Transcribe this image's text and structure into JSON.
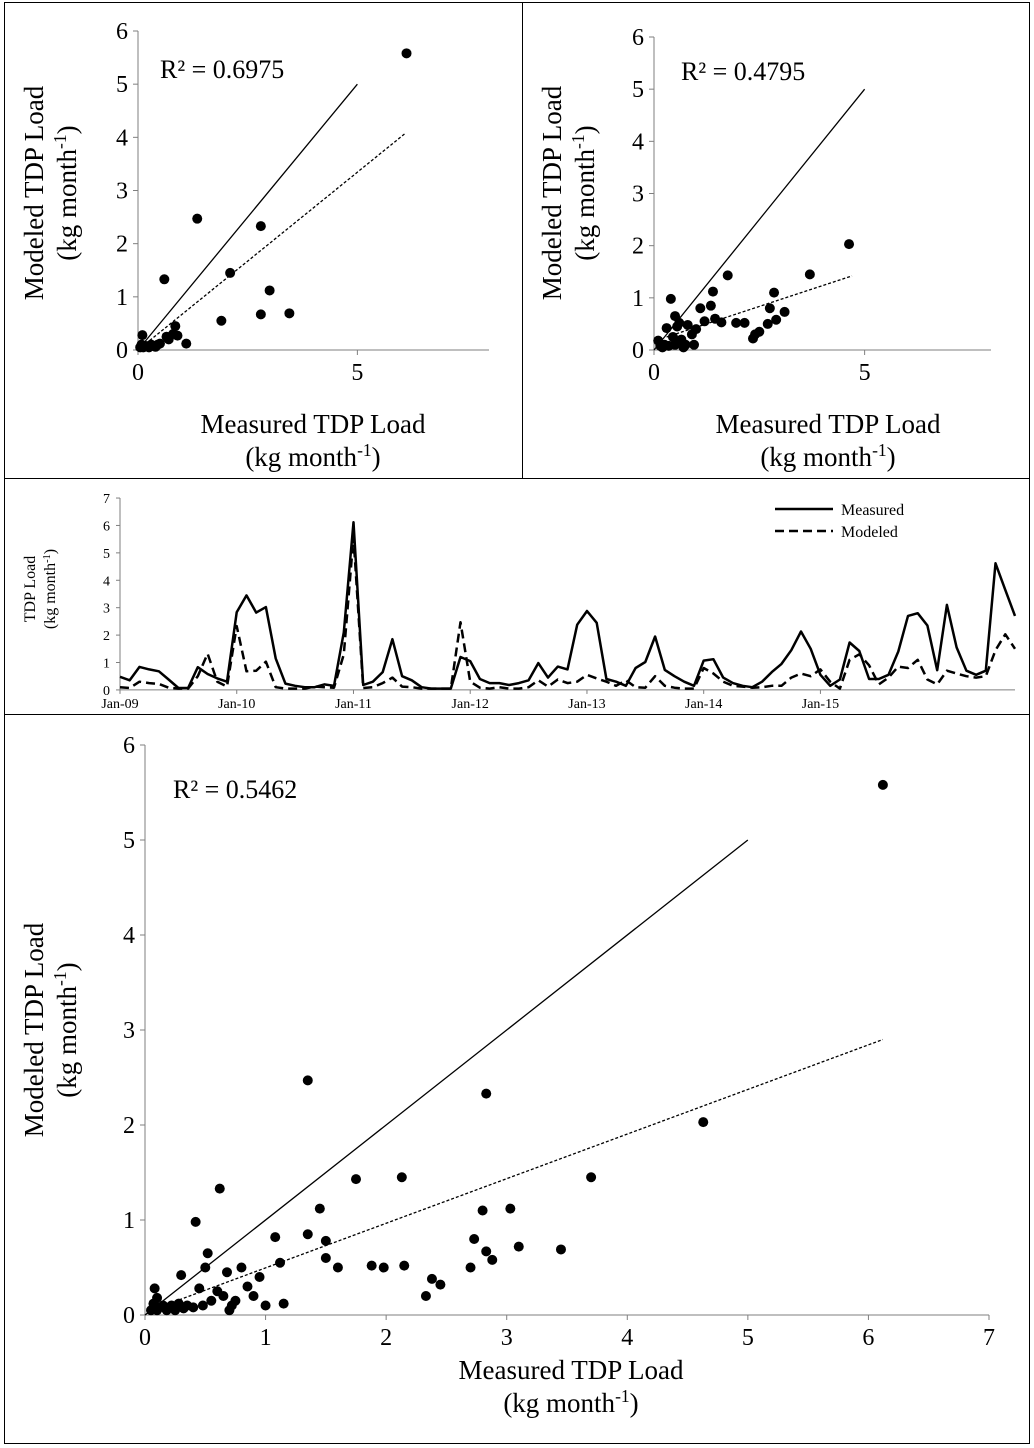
{
  "chart_data": [
    {
      "id": "scatter-a",
      "type": "scatter",
      "xlabel": "Measured  TDP Load",
      "xlabel_unit": "(kg month-1)",
      "ylabel": "Modeled  TDP Load",
      "ylabel_unit": "(kg month-1)",
      "annotation": "R² = 0.6975",
      "xlim": [
        0,
        8
      ],
      "ylim": [
        0,
        6
      ],
      "x_ticks": [
        "0",
        "5"
      ],
      "y_ticks": [
        "0",
        "1",
        "2",
        "3",
        "4",
        "5",
        "6"
      ],
      "one_to_one": [
        [
          0,
          0
        ],
        [
          5,
          5
        ]
      ],
      "trendline": [
        [
          0,
          0
        ],
        [
          6.1,
          4.08
        ]
      ],
      "points": [
        [
          0.05,
          0.05
        ],
        [
          0.08,
          0.1
        ],
        [
          0.1,
          0.28
        ],
        [
          0.12,
          0.05
        ],
        [
          0.15,
          0.08
        ],
        [
          0.2,
          0.07
        ],
        [
          0.25,
          0.05
        ],
        [
          0.3,
          0.1
        ],
        [
          0.35,
          0.08
        ],
        [
          0.4,
          0.06
        ],
        [
          0.45,
          0.1
        ],
        [
          0.5,
          0.12
        ],
        [
          0.6,
          1.33
        ],
        [
          0.65,
          0.25
        ],
        [
          0.7,
          0.2
        ],
        [
          0.8,
          0.3
        ],
        [
          0.85,
          0.45
        ],
        [
          0.9,
          0.27
        ],
        [
          1.1,
          0.12
        ],
        [
          1.35,
          2.47
        ],
        [
          1.9,
          0.55
        ],
        [
          2.1,
          1.45
        ],
        [
          2.8,
          2.33
        ],
        [
          2.8,
          0.67
        ],
        [
          3.0,
          1.12
        ],
        [
          3.45,
          0.69
        ],
        [
          6.12,
          5.58
        ]
      ]
    },
    {
      "id": "scatter-b",
      "type": "scatter",
      "xlabel": "Measured TDP Load",
      "xlabel_unit": "(kg month-1)",
      "ylabel": "Modeled  TDP Load",
      "ylabel_unit": "(kg month-1)",
      "annotation": "R² = 0.4795",
      "xlim": [
        0,
        8
      ],
      "ylim": [
        0,
        6
      ],
      "x_ticks": [
        "0",
        "5"
      ],
      "y_ticks": [
        "0",
        "1",
        "2",
        "3",
        "4",
        "5",
        "6"
      ],
      "one_to_one": [
        [
          0,
          0
        ],
        [
          5,
          5
        ]
      ],
      "trendline": [
        [
          0.3,
          0.25
        ],
        [
          4.7,
          1.42
        ]
      ],
      "points": [
        [
          0.1,
          0.18
        ],
        [
          0.15,
          0.08
        ],
        [
          0.2,
          0.05
        ],
        [
          0.25,
          0.1
        ],
        [
          0.3,
          0.42
        ],
        [
          0.35,
          0.08
        ],
        [
          0.4,
          0.98
        ],
        [
          0.45,
          0.25
        ],
        [
          0.5,
          0.65
        ],
        [
          0.5,
          0.1
        ],
        [
          0.55,
          0.45
        ],
        [
          0.6,
          0.52
        ],
        [
          0.65,
          0.2
        ],
        [
          0.7,
          0.05
        ],
        [
          0.75,
          0.1
        ],
        [
          0.8,
          0.48
        ],
        [
          0.9,
          0.3
        ],
        [
          0.95,
          0.1
        ],
        [
          1.0,
          0.4
        ],
        [
          1.1,
          0.8
        ],
        [
          1.2,
          0.55
        ],
        [
          1.35,
          0.85
        ],
        [
          1.4,
          1.12
        ],
        [
          1.45,
          0.6
        ],
        [
          1.6,
          0.53
        ],
        [
          1.75,
          1.43
        ],
        [
          1.95,
          0.52
        ],
        [
          2.15,
          0.52
        ],
        [
          2.35,
          0.22
        ],
        [
          2.4,
          0.3
        ],
        [
          2.5,
          0.35
        ],
        [
          2.7,
          0.5
        ],
        [
          2.75,
          0.8
        ],
        [
          2.85,
          1.1
        ],
        [
          2.9,
          0.58
        ],
        [
          3.1,
          0.73
        ],
        [
          3.7,
          1.45
        ],
        [
          4.63,
          2.03
        ]
      ]
    },
    {
      "id": "timeseries",
      "type": "line",
      "ylabel": "TDP Load",
      "ylabel_unit": "(kg month-1)",
      "ylim": [
        0,
        7
      ],
      "y_ticks": [
        "0",
        "1",
        "2",
        "3",
        "4",
        "5",
        "6",
        "7"
      ],
      "x_tick_labels": [
        "Jan-09",
        "Jan-10",
        "Jan-11",
        "Jan-12",
        "Jan-13",
        "Jan-14",
        "Jan-15"
      ],
      "legend_placement": "top-right",
      "series": [
        {
          "name": "Measured",
          "style": "solid",
          "values": [
            0.48,
            0.35,
            0.84,
            0.75,
            0.68,
            0.38,
            0.07,
            0.07,
            0.83,
            0.58,
            0.42,
            0.3,
            2.83,
            3.45,
            2.82,
            3.02,
            1.15,
            0.23,
            0.15,
            0.1,
            0.1,
            0.2,
            0.15,
            2.1,
            6.12,
            0.18,
            0.3,
            0.65,
            1.85,
            0.5,
            0.35,
            0.1,
            0.05,
            0.05,
            0.05,
            1.2,
            1.05,
            0.4,
            0.25,
            0.25,
            0.18,
            0.25,
            0.35,
            0.98,
            0.45,
            0.85,
            0.75,
            2.38,
            2.88,
            2.45,
            0.4,
            0.3,
            0.15,
            0.8,
            1.02,
            1.95,
            0.73,
            0.5,
            0.3,
            0.15,
            1.07,
            1.12,
            0.45,
            0.25,
            0.15,
            0.1,
            0.3,
            0.65,
            0.95,
            1.45,
            2.13,
            1.5,
            0.55,
            0.15,
            0.38,
            1.73,
            1.42,
            0.4,
            0.4,
            0.55,
            1.4,
            2.7,
            2.8,
            2.35,
            0.72,
            3.1,
            1.55,
            0.7,
            0.55,
            0.7,
            4.62,
            3.65,
            2.7
          ]
        },
        {
          "name": "Modeled",
          "style": "dashed",
          "values": [
            0.1,
            0.07,
            0.3,
            0.25,
            0.22,
            0.08,
            0.05,
            0.05,
            0.5,
            1.32,
            0.3,
            0.12,
            2.33,
            0.68,
            0.7,
            1.03,
            0.1,
            0.05,
            0.05,
            0.05,
            0.12,
            0.1,
            0.08,
            1.3,
            5.58,
            0.07,
            0.1,
            0.25,
            0.45,
            0.12,
            0.1,
            0.05,
            0.05,
            0.05,
            0.05,
            2.47,
            0.3,
            0.08,
            0.05,
            0.1,
            0.05,
            0.05,
            0.1,
            0.35,
            0.12,
            0.38,
            0.25,
            0.3,
            0.55,
            0.42,
            0.3,
            0.15,
            0.35,
            0.1,
            0.08,
            0.5,
            0.15,
            0.08,
            0.05,
            0.05,
            0.8,
            0.6,
            0.3,
            0.15,
            0.12,
            0.08,
            0.1,
            0.15,
            0.15,
            0.45,
            0.6,
            0.5,
            0.75,
            0.3,
            0.05,
            1.1,
            1.3,
            0.9,
            0.2,
            0.45,
            0.85,
            0.8,
            1.1,
            0.38,
            0.2,
            0.7,
            0.6,
            0.5,
            0.45,
            0.5,
            1.45,
            2.03,
            1.5
          ]
        }
      ]
    },
    {
      "id": "scatter-c",
      "type": "scatter",
      "xlabel": "Measured TDP Load",
      "xlabel_unit": "(kg month-1)",
      "ylabel": "Modeled TDP Load",
      "ylabel_unit": "(kg month-1)",
      "annotation": "R² = 0.5462",
      "xlim": [
        0,
        7
      ],
      "ylim": [
        0,
        6
      ],
      "x_ticks": [
        "0",
        "1",
        "2",
        "3",
        "4",
        "5",
        "6",
        "7"
      ],
      "y_ticks": [
        "0",
        "1",
        "2",
        "3",
        "4",
        "5",
        "6"
      ],
      "one_to_one": [
        [
          0,
          0
        ],
        [
          5,
          5
        ]
      ],
      "trendline": [
        [
          0.05,
          0.05
        ],
        [
          6.12,
          2.9
        ]
      ],
      "points": [
        [
          0.05,
          0.05
        ],
        [
          0.07,
          0.12
        ],
        [
          0.08,
          0.28
        ],
        [
          0.1,
          0.05
        ],
        [
          0.1,
          0.18
        ],
        [
          0.12,
          0.08
        ],
        [
          0.15,
          0.1
        ],
        [
          0.18,
          0.05
        ],
        [
          0.2,
          0.08
        ],
        [
          0.22,
          0.1
        ],
        [
          0.25,
          0.05
        ],
        [
          0.28,
          0.12
        ],
        [
          0.3,
          0.42
        ],
        [
          0.32,
          0.07
        ],
        [
          0.35,
          0.1
        ],
        [
          0.4,
          0.08
        ],
        [
          0.42,
          0.98
        ],
        [
          0.45,
          0.28
        ],
        [
          0.48,
          0.1
        ],
        [
          0.5,
          0.5
        ],
        [
          0.52,
          0.65
        ],
        [
          0.55,
          0.15
        ],
        [
          0.6,
          0.25
        ],
        [
          0.62,
          1.33
        ],
        [
          0.65,
          0.2
        ],
        [
          0.68,
          0.45
        ],
        [
          0.7,
          0.05
        ],
        [
          0.72,
          0.1
        ],
        [
          0.75,
          0.15
        ],
        [
          0.8,
          0.5
        ],
        [
          0.85,
          0.3
        ],
        [
          0.9,
          0.2
        ],
        [
          0.95,
          0.4
        ],
        [
          1.0,
          0.1
        ],
        [
          1.08,
          0.82
        ],
        [
          1.12,
          0.55
        ],
        [
          1.15,
          0.12
        ],
        [
          1.35,
          2.47
        ],
        [
          1.35,
          0.85
        ],
        [
          1.45,
          1.12
        ],
        [
          1.5,
          0.78
        ],
        [
          1.5,
          0.6
        ],
        [
          1.6,
          0.5
        ],
        [
          1.75,
          1.43
        ],
        [
          1.88,
          0.52
        ],
        [
          1.98,
          0.5
        ],
        [
          2.13,
          1.45
        ],
        [
          2.15,
          0.52
        ],
        [
          2.33,
          0.2
        ],
        [
          2.38,
          0.38
        ],
        [
          2.45,
          0.32
        ],
        [
          2.7,
          0.5
        ],
        [
          2.73,
          0.8
        ],
        [
          2.8,
          1.1
        ],
        [
          2.83,
          2.33
        ],
        [
          2.83,
          0.67
        ],
        [
          2.88,
          0.58
        ],
        [
          3.03,
          1.12
        ],
        [
          3.1,
          0.72
        ],
        [
          3.45,
          0.69
        ],
        [
          3.7,
          1.45
        ],
        [
          4.63,
          2.03
        ],
        [
          6.12,
          5.58
        ]
      ]
    }
  ]
}
